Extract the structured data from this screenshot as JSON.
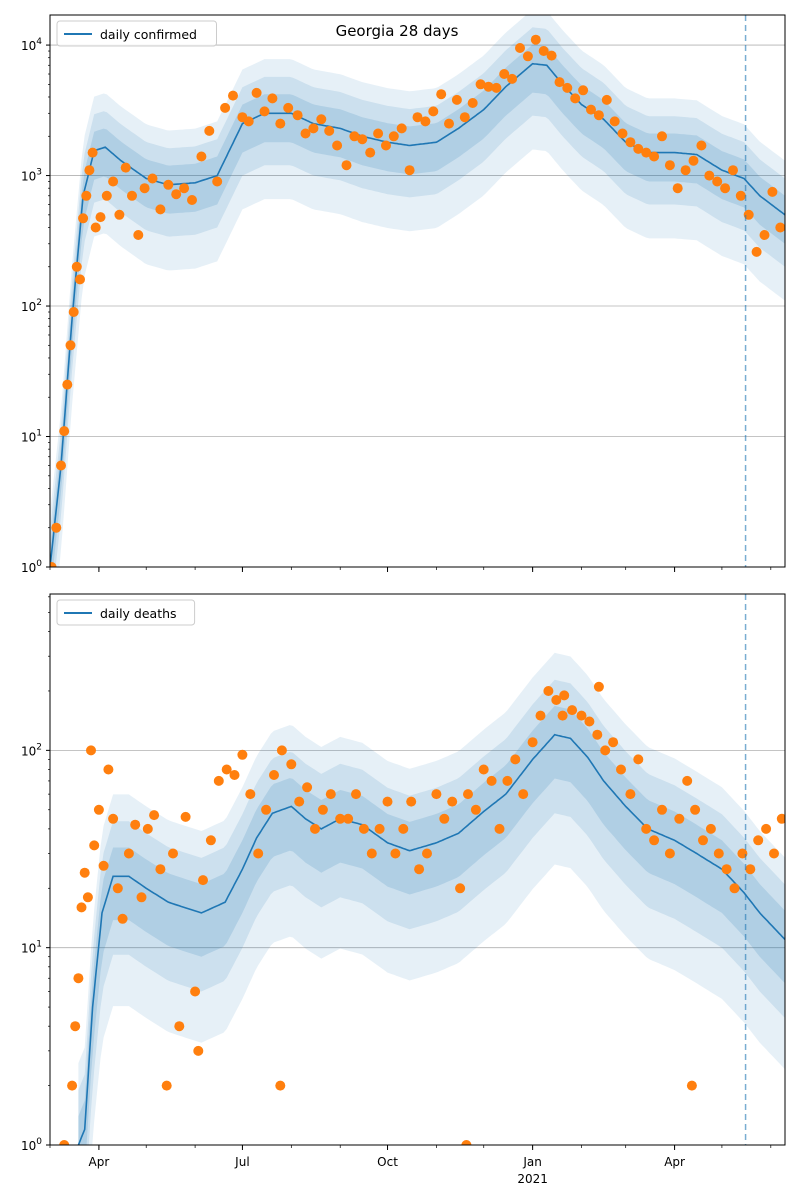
{
  "figure": {
    "title": "Georgia 28 days"
  },
  "colors": {
    "line": "#1f77b4",
    "points": "#ff7f0e",
    "band": "#1f77b4",
    "grid": "#b0b0b0",
    "forecast_line": "#1f77b4"
  },
  "x_axis": {
    "ticks": [
      {
        "label": "Apr",
        "date": "2020-04-01"
      },
      {
        "label": "Jul",
        "date": "2020-07-01"
      },
      {
        "label": "Oct",
        "date": "2020-10-01"
      },
      {
        "label": "Jan",
        "date": "2021-01-01"
      },
      {
        "label": "Apr",
        "date": "2021-04-01"
      }
    ],
    "year_label": "2021",
    "range": [
      "2020-03-01",
      "2021-06-10"
    ],
    "forecast_start": "2021-05-16"
  },
  "chart_data": [
    {
      "type": "line",
      "name": "confirmed",
      "title": "Georgia 28 days",
      "legend": "daily confirmed",
      "legend_position": "top-left",
      "yscale": "log",
      "ylim": [
        1,
        17000
      ],
      "yticks": [
        {
          "value": 1,
          "base": "10",
          "exp": "0"
        },
        {
          "value": 10,
          "base": "10",
          "exp": "1"
        },
        {
          "value": 100,
          "base": "10",
          "exp": "2"
        },
        {
          "value": 1000,
          "base": "10",
          "exp": "3"
        },
        {
          "value": 10000,
          "base": "10",
          "exp": "4"
        }
      ],
      "model_line": {
        "dates": [
          "2020-03-01",
          "2020-03-08",
          "2020-03-15",
          "2020-03-22",
          "2020-03-29",
          "2020-04-05",
          "2020-04-15",
          "2020-05-01",
          "2020-05-15",
          "2020-06-01",
          "2020-06-15",
          "2020-07-01",
          "2020-07-15",
          "2020-08-01",
          "2020-08-15",
          "2020-09-01",
          "2020-09-15",
          "2020-10-01",
          "2020-10-15",
          "2020-11-01",
          "2020-11-15",
          "2020-12-01",
          "2020-12-15",
          "2021-01-01",
          "2021-01-10",
          "2021-01-20",
          "2021-02-01",
          "2021-02-15",
          "2021-03-01",
          "2021-03-15",
          "2021-04-01",
          "2021-04-15",
          "2021-05-01",
          "2021-05-15",
          "2021-05-25",
          "2021-06-10"
        ],
        "values": [
          1,
          6,
          80,
          700,
          1550,
          1650,
          1300,
          950,
          850,
          880,
          1000,
          2500,
          3000,
          3000,
          2500,
          2300,
          2000,
          1800,
          1700,
          1800,
          2300,
          3200,
          4800,
          7200,
          7000,
          5000,
          3500,
          2700,
          1800,
          1500,
          1500,
          1450,
          1100,
          950,
          700,
          500
        ]
      },
      "observed": {
        "dates": [
          "2020-03-02",
          "2020-03-05",
          "2020-03-08",
          "2020-03-10",
          "2020-03-12",
          "2020-03-14",
          "2020-03-16",
          "2020-03-18",
          "2020-03-20",
          "2020-03-22",
          "2020-03-24",
          "2020-03-26",
          "2020-03-28",
          "2020-03-30",
          "2020-04-02",
          "2020-04-06",
          "2020-04-10",
          "2020-04-14",
          "2020-04-18",
          "2020-04-22",
          "2020-04-26",
          "2020-04-30",
          "2020-05-05",
          "2020-05-10",
          "2020-05-15",
          "2020-05-20",
          "2020-05-25",
          "2020-05-30",
          "2020-06-05",
          "2020-06-10",
          "2020-06-15",
          "2020-06-20",
          "2020-06-25",
          "2020-07-01",
          "2020-07-05",
          "2020-07-10",
          "2020-07-15",
          "2020-07-20",
          "2020-07-25",
          "2020-07-30",
          "2020-08-05",
          "2020-08-10",
          "2020-08-15",
          "2020-08-20",
          "2020-08-25",
          "2020-08-30",
          "2020-09-05",
          "2020-09-10",
          "2020-09-15",
          "2020-09-20",
          "2020-09-25",
          "2020-09-30",
          "2020-10-05",
          "2020-10-10",
          "2020-10-15",
          "2020-10-20",
          "2020-10-25",
          "2020-10-30",
          "2020-11-04",
          "2020-11-09",
          "2020-11-14",
          "2020-11-19",
          "2020-11-24",
          "2020-11-29",
          "2020-12-04",
          "2020-12-09",
          "2020-12-14",
          "2020-12-19",
          "2020-12-24",
          "2020-12-29",
          "2021-01-03",
          "2021-01-08",
          "2021-01-13",
          "2021-01-18",
          "2021-01-23",
          "2021-01-28",
          "2021-02-02",
          "2021-02-07",
          "2021-02-12",
          "2021-02-17",
          "2021-02-22",
          "2021-02-27",
          "2021-03-04",
          "2021-03-09",
          "2021-03-14",
          "2021-03-19",
          "2021-03-24",
          "2021-03-29",
          "2021-04-03",
          "2021-04-08",
          "2021-04-13",
          "2021-04-18",
          "2021-04-23",
          "2021-04-28",
          "2021-05-03",
          "2021-05-08",
          "2021-05-13",
          "2021-05-18",
          "2021-05-23",
          "2021-05-28",
          "2021-06-02",
          "2021-06-07"
        ],
        "values": [
          1,
          2,
          6,
          11,
          25,
          50,
          90,
          200,
          160,
          470,
          700,
          1100,
          1500,
          400,
          480,
          700,
          900,
          500,
          1150,
          700,
          350,
          800,
          950,
          550,
          850,
          720,
          800,
          650,
          1400,
          2200,
          900,
          3300,
          4100,
          2800,
          2600,
          4300,
          3100,
          3900,
          2500,
          3300,
          2900,
          2100,
          2300,
          2700,
          2200,
          1700,
          1200,
          2000,
          1900,
          1500,
          2100,
          1700,
          2000,
          2300,
          1100,
          2800,
          2600,
          3100,
          4200,
          2500,
          3800,
          2800,
          3600,
          5000,
          4800,
          4700,
          6000,
          5500,
          9500,
          8200,
          11000,
          9000,
          8300,
          5200,
          4700,
          3900,
          4500,
          3200,
          2900,
          3800,
          2600,
          2100,
          1800,
          1600,
          1500,
          1400,
          2000,
          1200,
          800,
          1100,
          1300,
          1700,
          1000,
          900,
          800,
          1100,
          700,
          500,
          260,
          350,
          750,
          400
        ]
      }
    },
    {
      "type": "line",
      "name": "deaths",
      "title": "",
      "legend": "daily deaths",
      "legend_position": "top-left",
      "yscale": "log",
      "ylim": [
        1,
        620
      ],
      "yticks": [
        {
          "value": 1,
          "base": "10",
          "exp": "0"
        },
        {
          "value": 10,
          "base": "10",
          "exp": "1"
        },
        {
          "value": 100,
          "base": "10",
          "exp": "2"
        }
      ],
      "model_line": {
        "dates": [
          "2020-03-19",
          "2020-03-23",
          "2020-03-28",
          "2020-04-03",
          "2020-04-10",
          "2020-04-20",
          "2020-05-01",
          "2020-05-15",
          "2020-05-25",
          "2020-06-05",
          "2020-06-20",
          "2020-07-01",
          "2020-07-10",
          "2020-07-20",
          "2020-08-01",
          "2020-08-10",
          "2020-08-20",
          "2020-09-01",
          "2020-09-15",
          "2020-10-01",
          "2020-10-15",
          "2020-11-01",
          "2020-11-15",
          "2020-12-01",
          "2020-12-15",
          "2021-01-01",
          "2021-01-15",
          "2021-01-25",
          "2021-02-05",
          "2021-02-15",
          "2021-03-01",
          "2021-03-15",
          "2021-04-01",
          "2021-04-15",
          "2021-05-01",
          "2021-05-15",
          "2021-05-25",
          "2021-06-10"
        ],
        "values": [
          1,
          1.2,
          5,
          15,
          23,
          23,
          20,
          17,
          16,
          15,
          17,
          25,
          36,
          48,
          52,
          45,
          40,
          45,
          42,
          34,
          31,
          34,
          38,
          49,
          60,
          90,
          120,
          115,
          92,
          70,
          52,
          40,
          35,
          30,
          25,
          19,
          15,
          11
        ]
      },
      "observed": {
        "dates": [
          "2020-03-10",
          "2020-03-15",
          "2020-03-17",
          "2020-03-19",
          "2020-03-21",
          "2020-03-23",
          "2020-03-25",
          "2020-03-27",
          "2020-03-29",
          "2020-04-01",
          "2020-04-04",
          "2020-04-07",
          "2020-04-10",
          "2020-04-13",
          "2020-04-16",
          "2020-04-20",
          "2020-04-24",
          "2020-04-28",
          "2020-05-02",
          "2020-05-06",
          "2020-05-10",
          "2020-05-14",
          "2020-05-18",
          "2020-05-22",
          "2020-05-26",
          "2020-06-01",
          "2020-06-06",
          "2020-06-11",
          "2020-06-16",
          "2020-06-21",
          "2020-06-26",
          "2020-07-01",
          "2020-07-06",
          "2020-07-11",
          "2020-07-16",
          "2020-07-21",
          "2020-07-26",
          "2020-08-01",
          "2020-08-06",
          "2020-08-11",
          "2020-08-16",
          "2020-08-21",
          "2020-08-26",
          "2020-09-01",
          "2020-09-06",
          "2020-09-11",
          "2020-09-16",
          "2020-09-21",
          "2020-09-26",
          "2020-10-01",
          "2020-10-06",
          "2020-10-11",
          "2020-10-16",
          "2020-10-21",
          "2020-10-26",
          "2020-11-01",
          "2020-11-06",
          "2020-11-11",
          "2020-11-16",
          "2020-11-21",
          "2020-11-26",
          "2020-12-01",
          "2020-12-06",
          "2020-12-11",
          "2020-12-16",
          "2020-12-21",
          "2020-12-26",
          "2021-01-01",
          "2021-01-06",
          "2021-01-11",
          "2021-01-16",
          "2021-01-21",
          "2021-01-26",
          "2021-02-01",
          "2021-02-06",
          "2021-02-11",
          "2021-02-16",
          "2021-02-21",
          "2021-02-26",
          "2021-03-04",
          "2021-03-09",
          "2021-03-14",
          "2021-03-19",
          "2021-03-24",
          "2021-03-29",
          "2021-04-04",
          "2021-04-09",
          "2021-04-14",
          "2021-04-19",
          "2021-04-24",
          "2021-04-29",
          "2021-05-04",
          "2021-05-09",
          "2021-05-14",
          "2021-05-19",
          "2021-05-24",
          "2021-05-29",
          "2021-06-03",
          "2021-06-08",
          "2021-04-12",
          "2020-06-03",
          "2020-07-25",
          "2020-11-20",
          "2021-01-20",
          "2021-02-12"
        ],
        "values": [
          1,
          2,
          4,
          7,
          16,
          24,
          18,
          100,
          33,
          50,
          26,
          80,
          45,
          20,
          14,
          30,
          42,
          18,
          40,
          47,
          25,
          2,
          30,
          4,
          46,
          6,
          22,
          35,
          70,
          80,
          75,
          95,
          60,
          30,
          50,
          75,
          100,
          85,
          55,
          65,
          40,
          50,
          60,
          45,
          45,
          60,
          40,
          30,
          40,
          55,
          30,
          40,
          55,
          25,
          30,
          60,
          45,
          55,
          20,
          60,
          50,
          80,
          70,
          40,
          70,
          90,
          60,
          110,
          150,
          200,
          180,
          190,
          160,
          150,
          140,
          120,
          100,
          110,
          80,
          60,
          90,
          40,
          35,
          50,
          30,
          45,
          70,
          50,
          35,
          40,
          30,
          25,
          20,
          30,
          25,
          35,
          40,
          30,
          45,
          2,
          3,
          2,
          1,
          150,
          210
        ]
      }
    }
  ]
}
